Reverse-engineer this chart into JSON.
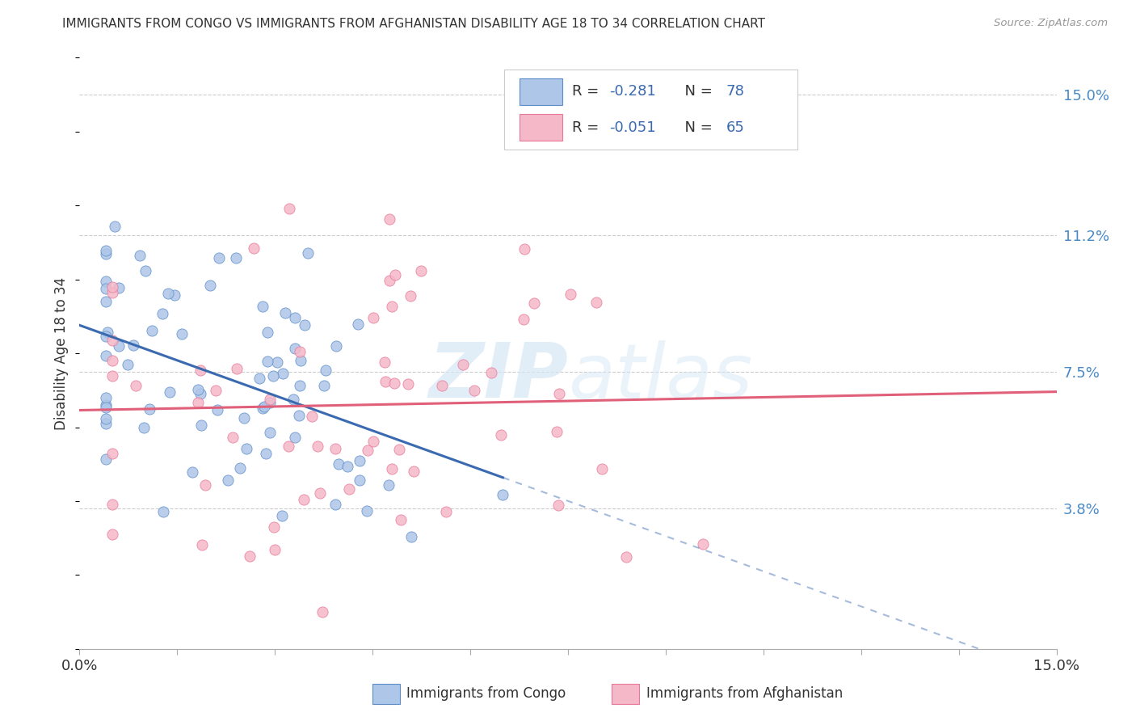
{
  "title": "IMMIGRANTS FROM CONGO VS IMMIGRANTS FROM AFGHANISTAN DISABILITY AGE 18 TO 34 CORRELATION CHART",
  "source": "Source: ZipAtlas.com",
  "ylabel": "Disability Age 18 to 34",
  "ytick_labels": [
    "15.0%",
    "11.2%",
    "7.5%",
    "3.8%"
  ],
  "ytick_values": [
    0.15,
    0.112,
    0.075,
    0.038
  ],
  "xlim": [
    0.0,
    0.15
  ],
  "ylim": [
    0.0,
    0.16
  ],
  "congo_R": "-0.281",
  "congo_N": "78",
  "afghanistan_R": "-0.051",
  "afghanistan_N": "65",
  "congo_color": "#aec6e8",
  "afghanistan_color": "#f5b8c8",
  "congo_edge_color": "#5b8dc8",
  "afghanistan_edge_color": "#e87898",
  "congo_line_color": "#3a6ab0",
  "afghanistan_line_color": "#e0607a",
  "watermark_color": "#d5e8f5",
  "legend_label_congo": "Immigrants from Congo",
  "legend_label_afghanistan": "Immigrants from Afghanistan",
  "xtick_labels": [
    "0.0%",
    "15.0%"
  ],
  "xtick_positions": [
    0.0,
    0.15
  ]
}
